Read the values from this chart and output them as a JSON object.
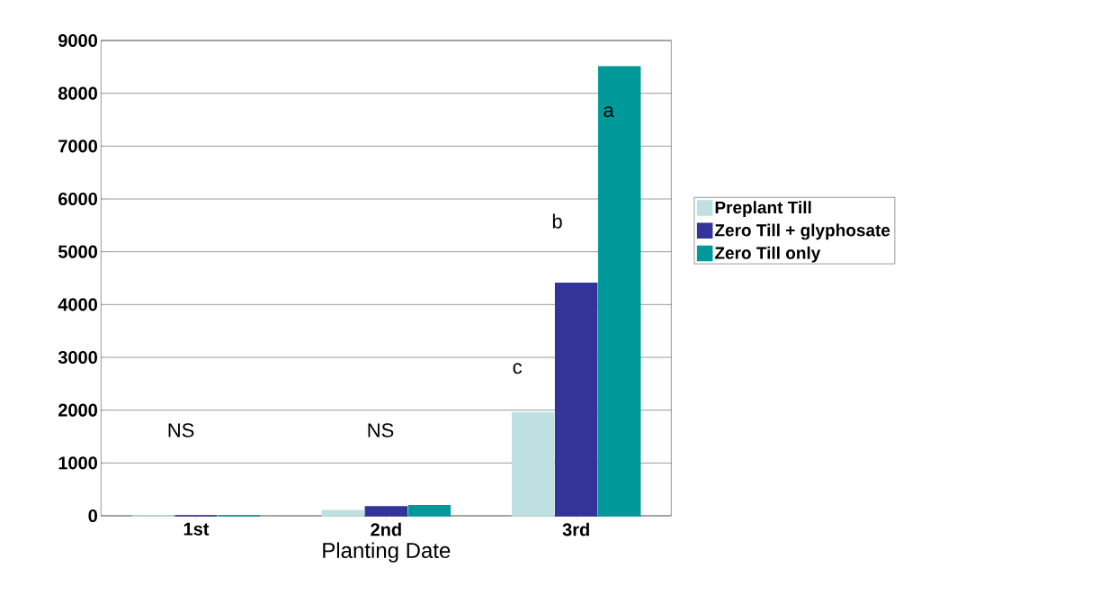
{
  "chart_data": {
    "type": "bar",
    "xlabel": "Planting Date",
    "categories": [
      "1st",
      "2nd",
      "3rd"
    ],
    "series": [
      {
        "name": "Preplant Till",
        "color": "#bfe0e0",
        "values": [
          0,
          100,
          1950
        ]
      },
      {
        "name": "Zero Till + glyphosate",
        "color": "#333399",
        "values": [
          0,
          170,
          4400
        ]
      },
      {
        "name": "Zero Till only",
        "color": "#009999",
        "values": [
          0,
          190,
          8500
        ]
      }
    ],
    "ylim": [
      0,
      9000
    ],
    "yticks": [
      0,
      1000,
      2000,
      3000,
      4000,
      5000,
      6000,
      7000,
      8000,
      9000
    ],
    "grid": "y",
    "legend": "right",
    "annotations": [
      "NS",
      "NS",
      "c",
      "b",
      "a"
    ]
  }
}
